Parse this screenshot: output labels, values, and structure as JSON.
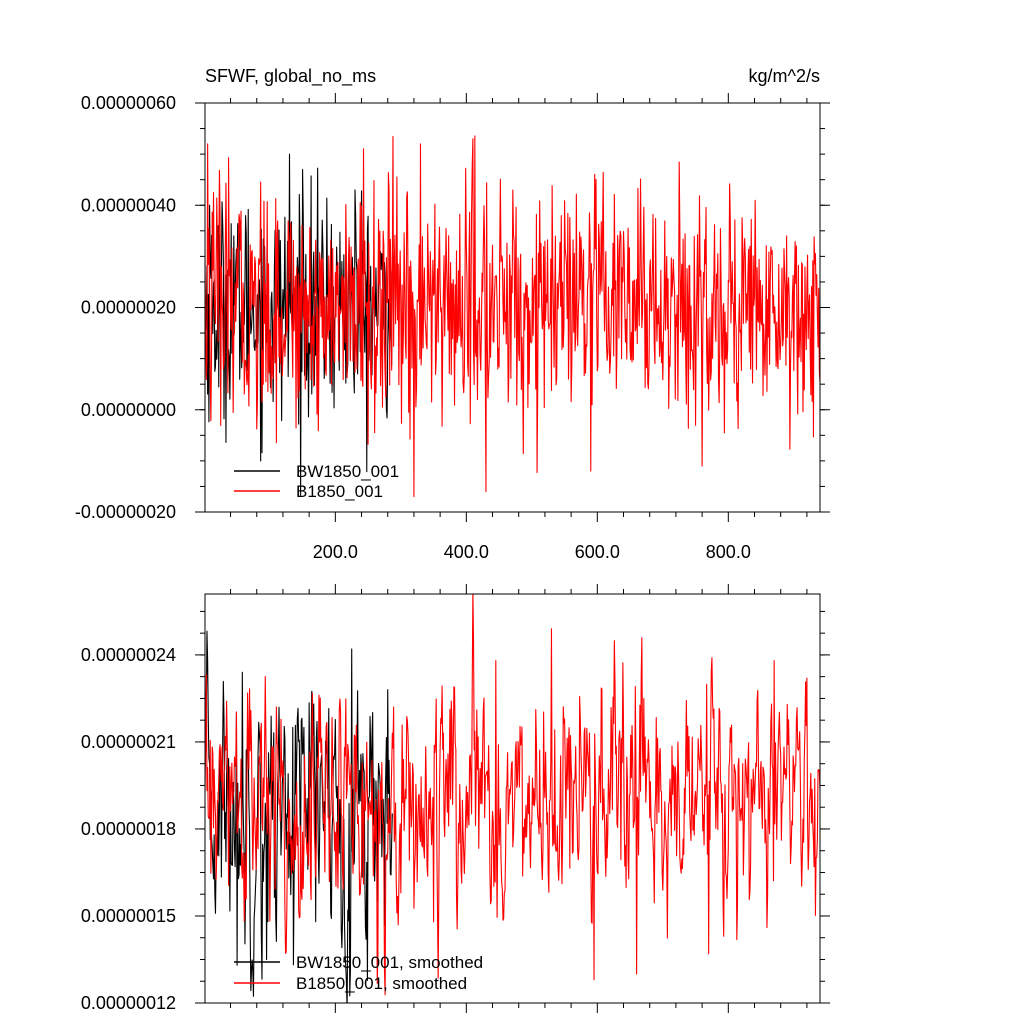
{
  "chart_data": [
    {
      "type": "line",
      "title_left": "SFWF, global_no_ms",
      "title_right": "kg/m^2/s",
      "xlabel": "",
      "ylabel": "",
      "xlim": [
        1,
        940
      ],
      "ylim": [
        -2e-07,
        6e-07
      ],
      "x_ticks": [
        200,
        400,
        600,
        800
      ],
      "x_tick_labels": [
        "200.0",
        "400.0",
        "600.0",
        "800.0"
      ],
      "y_ticks": [
        -2e-07,
        0.0,
        2e-07,
        4e-07,
        6e-07
      ],
      "y_tick_labels": [
        "-0.00000020",
        "0.00000000",
        "0.00000020",
        "0.00000040",
        "0.00000060"
      ],
      "grid": false,
      "legend_position": "bottom-left",
      "series": [
        {
          "name": "BW1850_001",
          "color": "#000000",
          "x_start": 1,
          "x_end": 287,
          "mean": 2e-07,
          "std": 1.05e-07,
          "key_points": [
            [
              130,
              5e-07
            ],
            [
              8,
              4e-07
            ],
            [
              45,
              3.4e-07
            ],
            [
              100,
              1e-07
            ],
            [
              150,
              4.7e-07
            ],
            [
              230,
              4.3e-07
            ],
            [
              280,
              1.2e-07
            ]
          ]
        },
        {
          "name": "B1850_001",
          "color": "#ff0000",
          "x_start": 1,
          "x_end": 940,
          "mean": 2e-07,
          "std": 1.15e-07,
          "key_points": [
            [
              5,
              5.2e-07
            ],
            [
              430,
              5.6e-07
            ],
            [
              410,
              5.3e-07
            ],
            [
              330,
              5.2e-07
            ],
            [
              430,
              -1.6e-07
            ],
            [
              590,
              -1.2e-07
            ],
            [
              760,
              -1.1e-07
            ],
            [
              320,
              -1.7e-07
            ]
          ]
        }
      ]
    },
    {
      "type": "line",
      "title_left": "",
      "title_right": "",
      "xlabel": "",
      "ylabel": "",
      "xlim": [
        1,
        940
      ],
      "ylim": [
        1.2e-07,
        2.61e-07
      ],
      "x_ticks": [
        200,
        400,
        600,
        800
      ],
      "x_tick_labels": [],
      "y_ticks": [
        1.2e-07,
        1.5e-07,
        1.8e-07,
        2.1e-07,
        2.4e-07
      ],
      "y_tick_labels": [
        "0.00000012",
        "0.00000015",
        "0.00000018",
        "0.00000021",
        "0.00000024"
      ],
      "grid": false,
      "legend_position": "bottom-left",
      "series": [
        {
          "name": "BW1850_001, smoothed",
          "color": "#000000",
          "x_start": 1,
          "x_end": 287,
          "mean": 1.87e-07,
          "std": 2.2e-08,
          "key_points": [
            [
              58,
              2.34e-07
            ],
            [
              135,
              2.15e-07
            ],
            [
              225,
              2.42e-07
            ],
            [
              280,
              2.28e-07
            ],
            [
              50,
              1.33e-07
            ],
            [
              95,
              1.35e-07
            ],
            [
              170,
              1.48e-07
            ]
          ]
        },
        {
          "name": "B1850_001, smoothed",
          "color": "#ff0000",
          "x_start": 1,
          "x_end": 940,
          "mean": 1.88e-07,
          "std": 1.9e-08,
          "key_points": [
            [
              530,
              2.49e-07
            ],
            [
              445,
              2.38e-07
            ],
            [
              870,
              2.38e-07
            ],
            [
              920,
              2.32e-07
            ],
            [
              595,
              1.28e-07
            ],
            [
              660,
              1.3e-07
            ],
            [
              350,
              1.48e-07
            ],
            [
              770,
              1.37e-07
            ]
          ]
        }
      ]
    }
  ]
}
